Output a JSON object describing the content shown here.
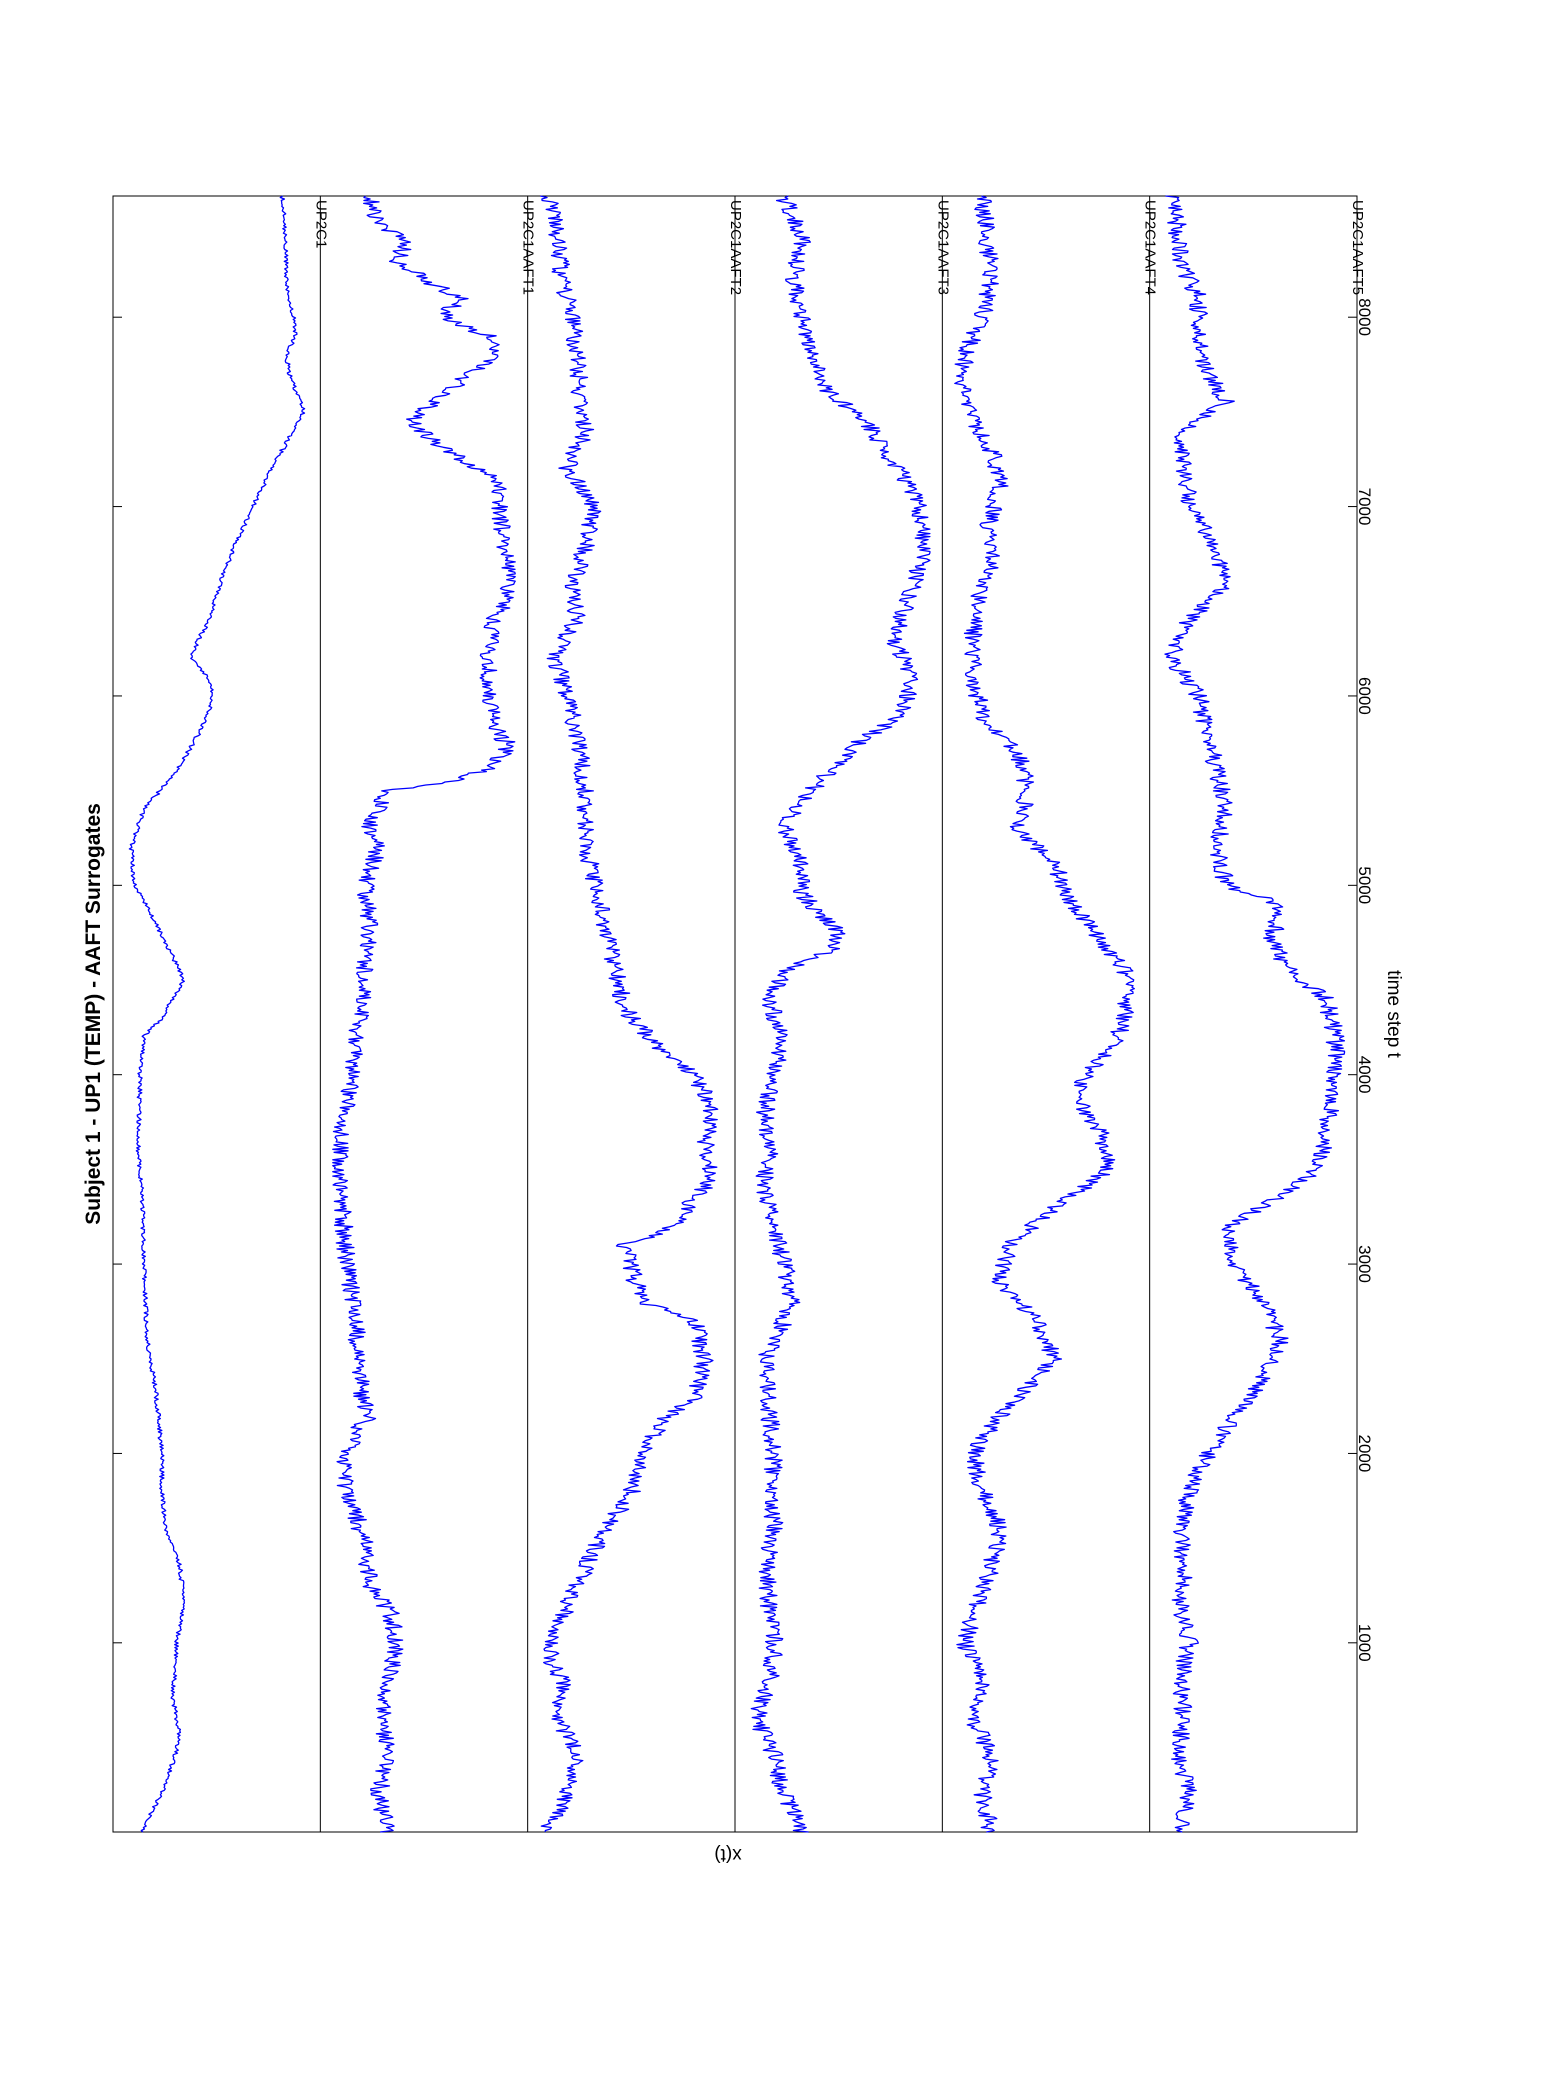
{
  "chart_data": {
    "type": "line",
    "title": "Subject 1 - UP1 (TEMP) - AAFT Surrogates",
    "xlabel": "time step t",
    "ylabel": "x(t)",
    "xlim": [
      1,
      8640
    ],
    "xticks": [
      1000,
      2000,
      3000,
      4000,
      5000,
      6000,
      7000,
      8000
    ],
    "orientation": "rotated 90 degrees clockwise",
    "grid": false,
    "line_color": "#0000ff",
    "series": [
      {
        "name": "UP2C1",
        "noise": 0.012,
        "values": [
          [
            1,
            0.09
          ],
          [
            250,
            0.22
          ],
          [
            500,
            0.3
          ],
          [
            700,
            0.26
          ],
          [
            1000,
            0.28
          ],
          [
            1200,
            0.32
          ],
          [
            1400,
            0.3
          ],
          [
            1600,
            0.22
          ],
          [
            1800,
            0.2
          ],
          [
            2000,
            0.2
          ],
          [
            2300,
            0.17
          ],
          [
            2600,
            0.12
          ],
          [
            3000,
            0.1
          ],
          [
            3400,
            0.09
          ],
          [
            3600,
            0.07
          ],
          [
            4000,
            0.08
          ],
          [
            4200,
            0.1
          ],
          [
            4300,
            0.2
          ],
          [
            4500,
            0.32
          ],
          [
            4700,
            0.22
          ],
          [
            4850,
            0.14
          ],
          [
            5000,
            0.05
          ],
          [
            5200,
            0.03
          ],
          [
            5400,
            0.1
          ],
          [
            5600,
            0.28
          ],
          [
            5800,
            0.4
          ],
          [
            5900,
            0.45
          ],
          [
            6000,
            0.48
          ],
          [
            6100,
            0.45
          ],
          [
            6200,
            0.36
          ],
          [
            6300,
            0.4
          ],
          [
            6400,
            0.46
          ],
          [
            6600,
            0.52
          ],
          [
            6800,
            0.6
          ],
          [
            7000,
            0.7
          ],
          [
            7200,
            0.8
          ],
          [
            7400,
            0.92
          ],
          [
            7500,
            0.98
          ],
          [
            7600,
            0.94
          ],
          [
            7700,
            0.9
          ],
          [
            7800,
            0.88
          ],
          [
            7900,
            0.93
          ],
          [
            8000,
            0.92
          ],
          [
            8200,
            0.88
          ],
          [
            8400,
            0.88
          ],
          [
            8640,
            0.86
          ]
        ]
      },
      {
        "name": "UP2C1AAFT1",
        "noise": 0.05,
        "values": [
          [
            1,
            0.3
          ],
          [
            200,
            0.25
          ],
          [
            400,
            0.3
          ],
          [
            600,
            0.28
          ],
          [
            800,
            0.3
          ],
          [
            1000,
            0.35
          ],
          [
            1150,
            0.32
          ],
          [
            1300,
            0.2
          ],
          [
            1500,
            0.18
          ],
          [
            1700,
            0.12
          ],
          [
            1900,
            0.05
          ],
          [
            2100,
            0.12
          ],
          [
            2200,
            0.2
          ],
          [
            2300,
            0.15
          ],
          [
            2500,
            0.15
          ],
          [
            2700,
            0.12
          ],
          [
            3000,
            0.08
          ],
          [
            3300,
            0.05
          ],
          [
            3500,
            0.03
          ],
          [
            3700,
            0.05
          ],
          [
            4000,
            0.1
          ],
          [
            4300,
            0.15
          ],
          [
            4600,
            0.18
          ],
          [
            4800,
            0.2
          ],
          [
            5000,
            0.18
          ],
          [
            5200,
            0.25
          ],
          [
            5300,
            0.2
          ],
          [
            5500,
            0.3
          ],
          [
            5560,
            0.7
          ],
          [
            5620,
            0.85
          ],
          [
            5700,
            0.95
          ],
          [
            5750,
            0.96
          ],
          [
            5800,
            0.9
          ],
          [
            6000,
            0.85
          ],
          [
            6200,
            0.85
          ],
          [
            6400,
            0.88
          ],
          [
            6500,
            0.95
          ],
          [
            6700,
            0.97
          ],
          [
            6850,
            0.93
          ],
          [
            7000,
            0.92
          ],
          [
            7150,
            0.9
          ],
          [
            7250,
            0.7
          ],
          [
            7350,
            0.55
          ],
          [
            7450,
            0.42
          ],
          [
            7550,
            0.55
          ],
          [
            7700,
            0.75
          ],
          [
            7800,
            0.9
          ],
          [
            7900,
            0.85
          ],
          [
            8000,
            0.6
          ],
          [
            8100,
            0.7
          ],
          [
            8200,
            0.5
          ],
          [
            8300,
            0.35
          ],
          [
            8400,
            0.4
          ],
          [
            8500,
            0.25
          ],
          [
            8640,
            0.2
          ]
        ]
      },
      {
        "name": "UP2C1AAFT2",
        "noise": 0.05,
        "values": [
          [
            1,
            0.03
          ],
          [
            200,
            0.15
          ],
          [
            400,
            0.2
          ],
          [
            600,
            0.1
          ],
          [
            800,
            0.12
          ],
          [
            900,
            0.05
          ],
          [
            1100,
            0.1
          ],
          [
            1300,
            0.2
          ],
          [
            1500,
            0.3
          ],
          [
            1650,
            0.4
          ],
          [
            1800,
            0.5
          ],
          [
            2000,
            0.55
          ],
          [
            2200,
            0.7
          ],
          [
            2300,
            0.85
          ],
          [
            2500,
            0.9
          ],
          [
            2700,
            0.85
          ],
          [
            2800,
            0.55
          ],
          [
            3000,
            0.5
          ],
          [
            3100,
            0.45
          ],
          [
            3200,
            0.75
          ],
          [
            3300,
            0.8
          ],
          [
            3450,
            0.95
          ],
          [
            3600,
            0.9
          ],
          [
            3800,
            0.95
          ],
          [
            4000,
            0.85
          ],
          [
            4100,
            0.7
          ],
          [
            4300,
            0.5
          ],
          [
            4400,
            0.45
          ],
          [
            4600,
            0.4
          ],
          [
            4800,
            0.35
          ],
          [
            5000,
            0.3
          ],
          [
            5200,
            0.25
          ],
          [
            5500,
            0.25
          ],
          [
            5800,
            0.2
          ],
          [
            6000,
            0.15
          ],
          [
            6200,
            0.08
          ],
          [
            6400,
            0.2
          ],
          [
            6600,
            0.18
          ],
          [
            6800,
            0.25
          ],
          [
            7000,
            0.3
          ],
          [
            7200,
            0.15
          ],
          [
            7400,
            0.25
          ],
          [
            7600,
            0.22
          ],
          [
            7800,
            0.2
          ],
          [
            8000,
            0.18
          ],
          [
            8200,
            0.12
          ],
          [
            8400,
            0.1
          ],
          [
            8640,
            0.05
          ]
        ]
      },
      {
        "name": "UP2C1AAFT3",
        "noise": 0.05,
        "values": [
          [
            1,
            0.3
          ],
          [
            200,
            0.2
          ],
          [
            400,
            0.15
          ],
          [
            600,
            0.05
          ],
          [
            800,
            0.12
          ],
          [
            1000,
            0.15
          ],
          [
            1200,
            0.12
          ],
          [
            1400,
            0.1
          ],
          [
            1600,
            0.15
          ],
          [
            1800,
            0.12
          ],
          [
            2000,
            0.15
          ],
          [
            2200,
            0.12
          ],
          [
            2500,
            0.1
          ],
          [
            2800,
            0.25
          ],
          [
            3000,
            0.2
          ],
          [
            3200,
            0.15
          ],
          [
            3400,
            0.08
          ],
          [
            3600,
            0.12
          ],
          [
            3800,
            0.1
          ],
          [
            4000,
            0.15
          ],
          [
            4200,
            0.18
          ],
          [
            4400,
            0.12
          ],
          [
            4550,
            0.2
          ],
          [
            4650,
            0.45
          ],
          [
            4750,
            0.5
          ],
          [
            4850,
            0.4
          ],
          [
            4950,
            0.3
          ],
          [
            5100,
            0.3
          ],
          [
            5300,
            0.2
          ],
          [
            5450,
            0.3
          ],
          [
            5600,
            0.45
          ],
          [
            5750,
            0.6
          ],
          [
            5900,
            0.85
          ],
          [
            6100,
            0.9
          ],
          [
            6300,
            0.8
          ],
          [
            6500,
            0.88
          ],
          [
            6700,
            0.95
          ],
          [
            6900,
            0.97
          ],
          [
            7100,
            0.9
          ],
          [
            7300,
            0.75
          ],
          [
            7450,
            0.65
          ],
          [
            7600,
            0.45
          ],
          [
            7800,
            0.35
          ],
          [
            8000,
            0.3
          ],
          [
            8200,
            0.25
          ],
          [
            8400,
            0.3
          ],
          [
            8640,
            0.2
          ]
        ]
      },
      {
        "name": "UP2C1AAFT4",
        "noise": 0.05,
        "values": [
          [
            1,
            0.2
          ],
          [
            200,
            0.15
          ],
          [
            400,
            0.2
          ],
          [
            600,
            0.1
          ],
          [
            800,
            0.15
          ],
          [
            1000,
            0.05
          ],
          [
            1200,
            0.12
          ],
          [
            1400,
            0.2
          ],
          [
            1600,
            0.25
          ],
          [
            1800,
            0.15
          ],
          [
            2000,
            0.1
          ],
          [
            2200,
            0.25
          ],
          [
            2400,
            0.45
          ],
          [
            2500,
            0.55
          ],
          [
            2700,
            0.45
          ],
          [
            2900,
            0.25
          ],
          [
            3100,
            0.3
          ],
          [
            3300,
            0.55
          ],
          [
            3500,
            0.85
          ],
          [
            3700,
            0.8
          ],
          [
            3900,
            0.65
          ],
          [
            4000,
            0.72
          ],
          [
            4200,
            0.9
          ],
          [
            4500,
            0.97
          ],
          [
            4700,
            0.8
          ],
          [
            4900,
            0.65
          ],
          [
            5100,
            0.55
          ],
          [
            5300,
            0.35
          ],
          [
            5500,
            0.4
          ],
          [
            5700,
            0.35
          ],
          [
            5900,
            0.15
          ],
          [
            6100,
            0.1
          ],
          [
            6300,
            0.1
          ],
          [
            6500,
            0.12
          ],
          [
            6700,
            0.2
          ],
          [
            6900,
            0.18
          ],
          [
            7100,
            0.25
          ],
          [
            7300,
            0.2
          ],
          [
            7500,
            0.08
          ],
          [
            7650,
            0.03
          ],
          [
            7800,
            0.06
          ],
          [
            8000,
            0.15
          ],
          [
            8200,
            0.2
          ],
          [
            8400,
            0.18
          ],
          [
            8640,
            0.15
          ]
        ]
      },
      {
        "name": "UP2C1AAFT5",
        "noise": 0.05,
        "values": [
          [
            1,
            0.1
          ],
          [
            200,
            0.15
          ],
          [
            400,
            0.08
          ],
          [
            600,
            0.12
          ],
          [
            800,
            0.1
          ],
          [
            1000,
            0.15
          ],
          [
            1200,
            0.1
          ],
          [
            1400,
            0.12
          ],
          [
            1600,
            0.1
          ],
          [
            1800,
            0.15
          ],
          [
            2000,
            0.25
          ],
          [
            2200,
            0.4
          ],
          [
            2400,
            0.55
          ],
          [
            2600,
            0.65
          ],
          [
            2800,
            0.55
          ],
          [
            3000,
            0.4
          ],
          [
            3200,
            0.35
          ],
          [
            3300,
            0.55
          ],
          [
            3500,
            0.85
          ],
          [
            3700,
            0.9
          ],
          [
            4000,
            0.95
          ],
          [
            4200,
            0.95
          ],
          [
            4400,
            0.9
          ],
          [
            4550,
            0.7
          ],
          [
            4700,
            0.6
          ],
          [
            4900,
            0.65
          ],
          [
            5000,
            0.35
          ],
          [
            5200,
            0.3
          ],
          [
            5400,
            0.35
          ],
          [
            5600,
            0.3
          ],
          [
            5800,
            0.25
          ],
          [
            6000,
            0.2
          ],
          [
            6200,
            0.05
          ],
          [
            6400,
            0.15
          ],
          [
            6600,
            0.35
          ],
          [
            6800,
            0.28
          ],
          [
            7000,
            0.15
          ],
          [
            7200,
            0.12
          ],
          [
            7400,
            0.1
          ],
          [
            7550,
            0.35
          ],
          [
            7700,
            0.25
          ],
          [
            7900,
            0.2
          ],
          [
            8100,
            0.2
          ],
          [
            8300,
            0.1
          ],
          [
            8500,
            0.08
          ],
          [
            8640,
            0.05
          ]
        ]
      }
    ]
  }
}
